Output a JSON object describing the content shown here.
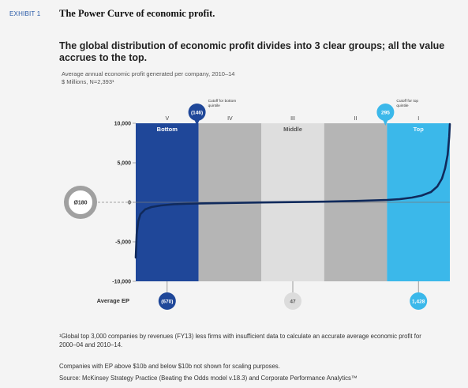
{
  "exhibit_label": "EXHIBIT 1",
  "title": "The Power Curve of economic profit.",
  "subtitle": "The global distribution of economic profit divides into 3 clear groups; all the value accrues to the top.",
  "caption_line1": "Average annual economic profit generated per company, 2010–14",
  "caption_line2": "$ Millions, N=2,393¹",
  "footnote": "¹Global top 3,000 companies by revenues (FY13) less firms with insufficient data to calculate an accurate average economic profit for 2000–04 and 2010–14.",
  "note1": "Companies with EP above $10b and below $10b not shown for scaling purposes.",
  "note2": "Source: McKinsey Strategy Practice (Beating the Odds model v.18.3) and Corporate Performance Analytics™",
  "colors": {
    "bottom": "#1f4799",
    "gray_dark": "#b5b5b5",
    "gray_light": "#dedede",
    "top": "#3bb8ea",
    "curve": "#102a5c",
    "ring": "#a0a0a0"
  },
  "chart_data": {
    "type": "line",
    "ylim": [
      -10000,
      10000
    ],
    "yticks": [
      10000,
      5000,
      0,
      -5000,
      -10000
    ],
    "ytick_labels": [
      "10,000",
      "5,000",
      "0",
      "-5,000",
      "-10,000"
    ],
    "quintiles": [
      {
        "numeral": "V",
        "label": "Bottom",
        "average_ep": -670,
        "avg_label": "(670)"
      },
      {
        "numeral": "IV",
        "label": "",
        "average_ep": null,
        "avg_label": ""
      },
      {
        "numeral": "III",
        "label": "Middle",
        "average_ep": 47,
        "avg_label": "47"
      },
      {
        "numeral": "II",
        "label": "",
        "average_ep": null,
        "avg_label": ""
      },
      {
        "numeral": "I",
        "label": "Top",
        "average_ep": 1428,
        "avg_label": "1,428"
      }
    ],
    "average_ep_label": "Average EP",
    "overall_average": {
      "value": 180,
      "label": "Ø180"
    },
    "cutoffs": {
      "bottom": {
        "value": -146,
        "label": "(146)",
        "text": "Cutoff for bottom quintile"
      },
      "top": {
        "value": 295,
        "label": "295",
        "text": "Cutoff for top quintile"
      }
    },
    "curve": {
      "x_percentile": [
        0,
        0.3,
        0.8,
        1.5,
        3,
        5,
        8,
        12,
        16,
        20,
        30,
        40,
        50,
        60,
        70,
        80,
        84,
        88,
        91,
        94,
        96,
        97.5,
        98.5,
        99.3,
        99.8,
        100
      ],
      "y": [
        -7000,
        -4000,
        -2400,
        -1500,
        -900,
        -600,
        -400,
        -250,
        -180,
        -146,
        -80,
        -20,
        30,
        80,
        170,
        295,
        400,
        600,
        850,
        1300,
        2000,
        3000,
        4300,
        6000,
        8300,
        9900
      ]
    }
  }
}
